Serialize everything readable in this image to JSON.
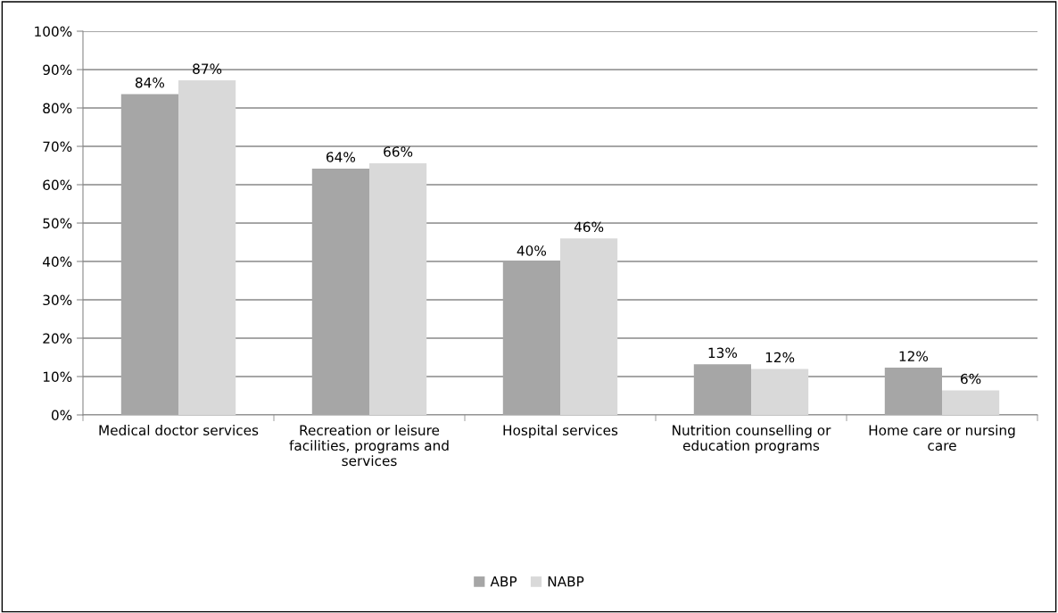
{
  "chart_data": {
    "type": "bar",
    "categories": [
      "Medical doctor services",
      "Recreation or leisure\nfacilities, programs and\nservices",
      "Hospital services",
      "Nutrition counselling or\neducation programs",
      "Home care or nursing\ncare"
    ],
    "series": [
      {
        "name": "ABP",
        "color": "#a6a6a6",
        "values": [
          83.6,
          64.2,
          39.8,
          13.2,
          12.3
        ],
        "value_labels": [
          "84%",
          "64%",
          "40%",
          "13%",
          "12%"
        ]
      },
      {
        "name": "NABP",
        "color": "#d9d9d9",
        "values": [
          87.2,
          65.6,
          46.0,
          12.0,
          6.4
        ],
        "value_labels": [
          "87%",
          "66%",
          "46%",
          "12%",
          "6%"
        ]
      }
    ],
    "ylim": [
      0,
      100
    ],
    "yticks": [
      {
        "value": 0,
        "label": "0%"
      },
      {
        "value": 10,
        "label": "10%"
      },
      {
        "value": 20,
        "label": "20%"
      },
      {
        "value": 30,
        "label": "30%"
      },
      {
        "value": 40,
        "label": "40%"
      },
      {
        "value": 50,
        "label": "50%"
      },
      {
        "value": 60,
        "label": "60%"
      },
      {
        "value": 70,
        "label": "70%"
      },
      {
        "value": 80,
        "label": "80%"
      },
      {
        "value": 90,
        "label": "90%"
      },
      {
        "value": 100,
        "label": "100%"
      }
    ],
    "grid": "y",
    "legend": "bottom"
  }
}
